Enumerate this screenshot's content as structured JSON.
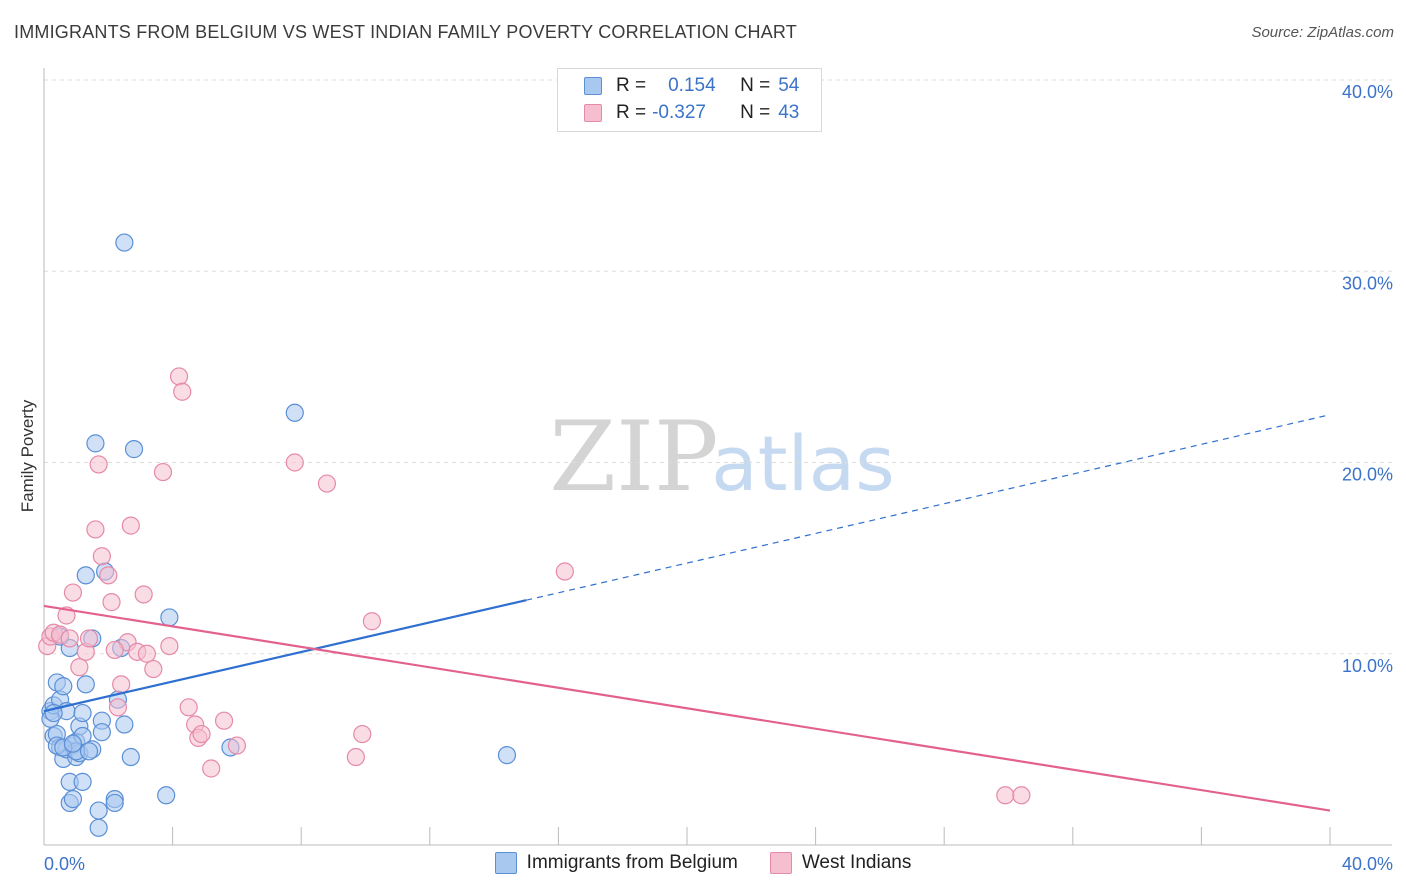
{
  "title": "IMMIGRANTS FROM BELGIUM VS WEST INDIAN FAMILY POVERTY CORRELATION CHART",
  "source": "Source: ZipAtlas.com",
  "watermark": {
    "zip": "ZIP",
    "atlas": "atlas"
  },
  "legend_stats": [
    {
      "r_label": "R =",
      "r_value": "0.154",
      "n_label": "N =",
      "n_value": "54"
    },
    {
      "r_label": "R =",
      "r_value": "-0.327",
      "n_label": "N =",
      "n_value": "43"
    }
  ],
  "colors": {
    "blue_fill": "#a9c8f0",
    "blue_stroke": "#5b8fd6",
    "blue_line": "#2f6fd1",
    "pink_fill": "#f6bfd0",
    "pink_stroke": "#e58aa8",
    "pink_line": "#e3618d",
    "tick_text": "#3b73c8",
    "grid": "#dddddd"
  },
  "chart_data": {
    "type": "scatter",
    "title": "IMMIGRANTS FROM BELGIUM VS WEST INDIAN FAMILY POVERTY CORRELATION CHART",
    "xlabel": "",
    "ylabel": "Family Poverty",
    "xlim": [
      0,
      40
    ],
    "ylim": [
      0,
      40
    ],
    "x_tick_labels": [
      "0.0%",
      "40.0%"
    ],
    "y_ticks": [
      10,
      20,
      30,
      40
    ],
    "y_tick_labels": [
      "10.0%",
      "20.0%",
      "30.0%",
      "40.0%"
    ],
    "grid": true,
    "legend_position": "top-center",
    "series": [
      {
        "name": "Immigrants from Belgium",
        "color": "#5b8fd6",
        "trend": {
          "x": [
            0,
            15
          ],
          "y": [
            7.0,
            12.8
          ],
          "dashed_to": [
            40,
            22.5
          ]
        },
        "points": [
          [
            0.2,
            7.0
          ],
          [
            0.2,
            6.6
          ],
          [
            0.3,
            7.3
          ],
          [
            0.3,
            5.7
          ],
          [
            0.4,
            8.5
          ],
          [
            0.4,
            5.8
          ],
          [
            0.5,
            7.6
          ],
          [
            0.5,
            5.1
          ],
          [
            0.6,
            4.5
          ],
          [
            0.6,
            8.3
          ],
          [
            0.7,
            7.0
          ],
          [
            0.7,
            5.0
          ],
          [
            0.8,
            3.3
          ],
          [
            0.8,
            10.3
          ],
          [
            0.8,
            2.2
          ],
          [
            0.9,
            5.2
          ],
          [
            0.9,
            2.4
          ],
          [
            1.0,
            4.6
          ],
          [
            1.0,
            5.4
          ],
          [
            1.1,
            6.2
          ],
          [
            1.1,
            4.8
          ],
          [
            1.2,
            3.3
          ],
          [
            1.2,
            5.7
          ],
          [
            1.2,
            6.9
          ],
          [
            1.3,
            8.4
          ],
          [
            1.3,
            14.1
          ],
          [
            1.5,
            5.0
          ],
          [
            1.5,
            10.8
          ],
          [
            1.6,
            21.0
          ],
          [
            1.7,
            1.8
          ],
          [
            1.7,
            0.9
          ],
          [
            1.8,
            6.5
          ],
          [
            1.8,
            5.9
          ],
          [
            1.9,
            14.3
          ],
          [
            2.2,
            2.4
          ],
          [
            2.2,
            2.2
          ],
          [
            2.3,
            7.6
          ],
          [
            2.4,
            10.3
          ],
          [
            2.5,
            31.5
          ],
          [
            2.5,
            6.3
          ],
          [
            2.7,
            4.6
          ],
          [
            2.8,
            20.7
          ],
          [
            3.8,
            2.6
          ],
          [
            3.9,
            11.9
          ],
          [
            5.8,
            5.1
          ],
          [
            7.8,
            22.6
          ],
          [
            14.4,
            4.7
          ],
          [
            0.5,
            10.9
          ],
          [
            0.3,
            6.9
          ],
          [
            0.4,
            5.2
          ],
          [
            1.0,
            4.9
          ],
          [
            0.6,
            5.1
          ],
          [
            0.9,
            5.3
          ],
          [
            1.4,
            4.9
          ]
        ]
      },
      {
        "name": "West Indians",
        "color": "#e58aa8",
        "trend": {
          "x": [
            0,
            40
          ],
          "y": [
            12.5,
            1.8
          ]
        },
        "points": [
          [
            0.1,
            10.4
          ],
          [
            0.2,
            10.9
          ],
          [
            0.3,
            11.1
          ],
          [
            0.5,
            11.0
          ],
          [
            0.7,
            12.0
          ],
          [
            0.8,
            10.8
          ],
          [
            0.9,
            13.2
          ],
          [
            1.1,
            9.3
          ],
          [
            1.3,
            10.1
          ],
          [
            1.4,
            10.8
          ],
          [
            1.6,
            16.5
          ],
          [
            1.7,
            19.9
          ],
          [
            1.8,
            15.1
          ],
          [
            2.0,
            14.1
          ],
          [
            2.1,
            12.7
          ],
          [
            2.3,
            7.2
          ],
          [
            2.4,
            8.4
          ],
          [
            2.6,
            10.6
          ],
          [
            2.7,
            16.7
          ],
          [
            2.9,
            10.1
          ],
          [
            3.1,
            13.1
          ],
          [
            3.2,
            10.0
          ],
          [
            3.4,
            9.2
          ],
          [
            3.7,
            19.5
          ],
          [
            3.9,
            10.4
          ],
          [
            4.2,
            24.5
          ],
          [
            4.3,
            23.7
          ],
          [
            4.5,
            7.2
          ],
          [
            4.7,
            6.3
          ],
          [
            4.8,
            5.6
          ],
          [
            4.9,
            5.8
          ],
          [
            5.2,
            4.0
          ],
          [
            5.6,
            6.5
          ],
          [
            6.0,
            5.2
          ],
          [
            7.8,
            20.0
          ],
          [
            8.8,
            18.9
          ],
          [
            9.7,
            4.6
          ],
          [
            9.9,
            5.8
          ],
          [
            10.2,
            11.7
          ],
          [
            16.2,
            14.3
          ],
          [
            29.9,
            2.6
          ],
          [
            30.4,
            2.6
          ],
          [
            2.2,
            10.2
          ]
        ]
      }
    ]
  }
}
